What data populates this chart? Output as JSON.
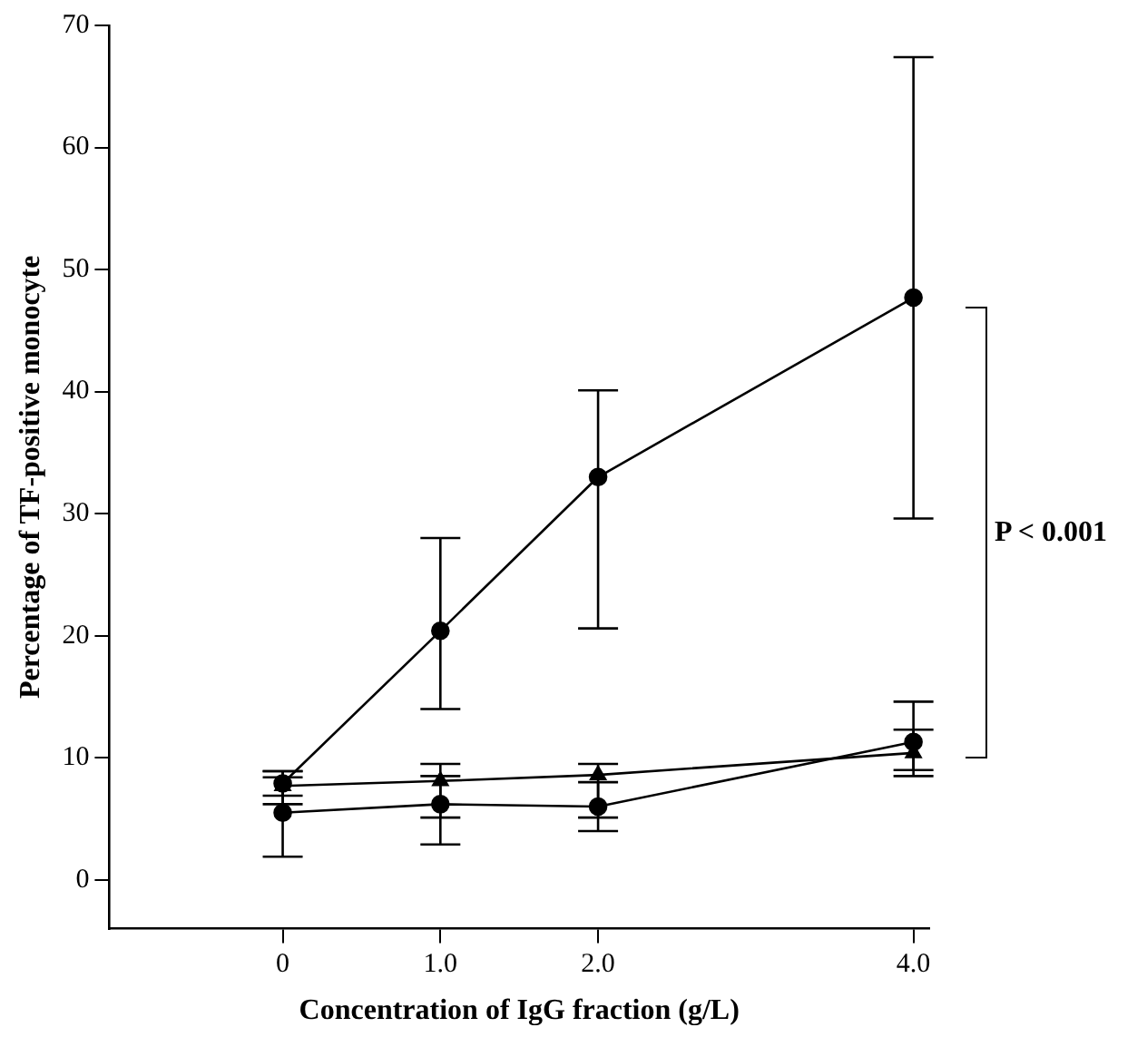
{
  "chart_data": {
    "type": "line",
    "xlabel": "Concentration of IgG fraction (g/L)",
    "ylabel": "Percentage of TF-positive monocyte",
    "x": [
      0,
      1,
      2,
      4
    ],
    "xlim": [
      -1.1,
      4.1
    ],
    "xticks": [
      0,
      {
        "value": 1,
        "label": "1.0"
      },
      {
        "value": 2,
        "label": "2.0"
      },
      {
        "value": 4,
        "label": "4.0"
      }
    ],
    "ylim": [
      -4,
      70
    ],
    "yticks": [
      0,
      10,
      20,
      30,
      40,
      50,
      60,
      70
    ],
    "grid": false,
    "legend": false,
    "line_style": "solid",
    "series": [
      {
        "color": "#000000",
        "marker": "circle",
        "values": [
          7.9,
          20.4,
          33.0,
          47.7
        ],
        "errors": [
          1.0,
          [
            14.0,
            28.0
          ],
          [
            20.6,
            40.1
          ],
          [
            29.6,
            67.4
          ]
        ]
      },
      {
        "color": "#000000",
        "marker": "triangle",
        "values": [
          7.7,
          8.1,
          8.6,
          10.4
        ],
        "errors": [
          [
            6.2,
            8.4
          ],
          [
            5.1,
            9.5
          ],
          [
            5.1,
            9.5
          ],
          [
            9.0,
            12.3
          ]
        ]
      },
      {
        "color": "#000000",
        "marker": "circle",
        "values": [
          5.5,
          6.2,
          6.0,
          11.3
        ],
        "errors": [
          [
            1.9,
            8.9
          ],
          [
            2.9,
            8.5
          ],
          [
            4.0,
            8.0
          ],
          [
            8.5,
            14.6
          ]
        ]
      }
    ],
    "annotations": [
      "P < 0.001"
    ]
  }
}
